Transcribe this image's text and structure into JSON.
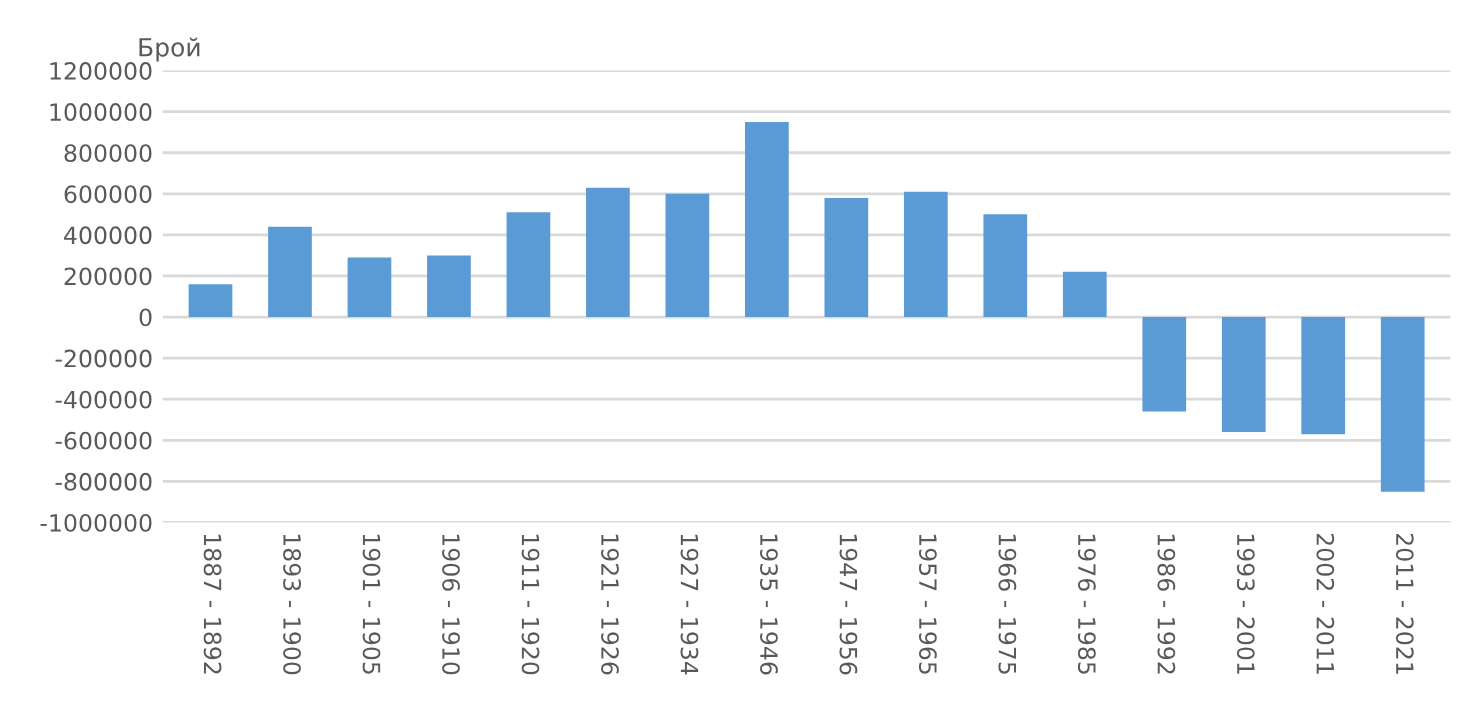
{
  "chart_data": {
    "type": "bar",
    "ylabel": "Брой",
    "categories": [
      "1887 - 1892",
      "1893 - 1900",
      "1901 - 1905",
      "1906 - 1910",
      "1911 - 1920",
      "1921 - 1926",
      "1927 - 1934",
      "1935 - 1946",
      "1947 - 1956",
      "1957 - 1965",
      "1966 - 1975",
      "1976 - 1985",
      "1986 - 1992",
      "1993 - 2001",
      "2002 - 2011",
      "2011 - 2021"
    ],
    "values": [
      160000,
      440000,
      290000,
      300000,
      510000,
      630000,
      600000,
      950000,
      580000,
      610000,
      500000,
      220000,
      -460000,
      -560000,
      -570000,
      -850000
    ],
    "color": "#5b9bd5",
    "ylim": [
      -1000000,
      1200000
    ],
    "yticks": [
      -1000000,
      -800000,
      -600000,
      -400000,
      -200000,
      0,
      200000,
      400000,
      600000,
      800000,
      1000000,
      1200000
    ],
    "grid": "y",
    "legend": false
  }
}
